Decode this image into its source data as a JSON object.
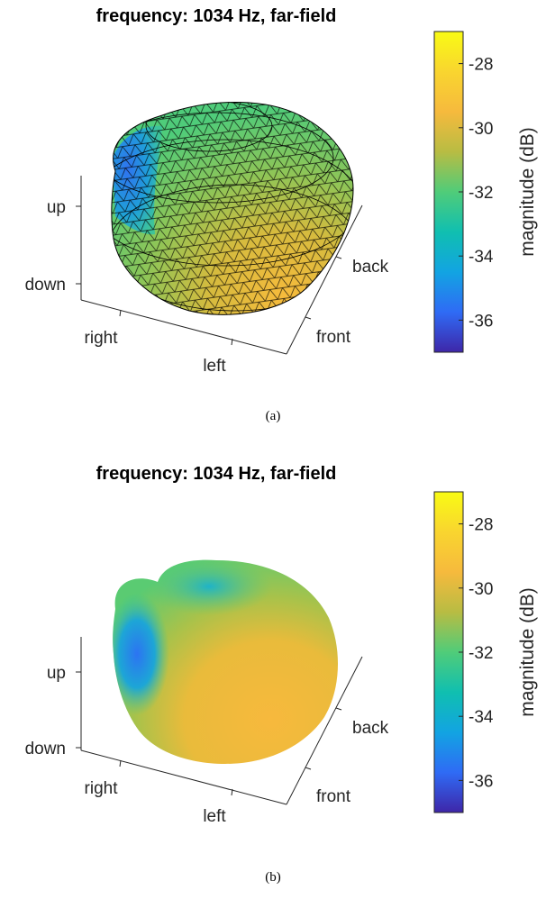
{
  "figure": {
    "caption_a": "(a)",
    "caption_b": "(b)"
  },
  "colors": {
    "colormap": [
      "#3e26a8",
      "#2f6bf5",
      "#12a4e2",
      "#10bfb0",
      "#50cc79",
      "#b8bc43",
      "#f6ba3d",
      "#f9d52f",
      "#f9fb14"
    ],
    "axis": "#262626",
    "mesh_edge": "#000000"
  },
  "chart_data": [
    {
      "type": "heatmap",
      "subtype": "3d directivity balloon (mesh surface)",
      "title": "frequency: 1034 Hz, far-field",
      "axes": {
        "z_ticks": [
          "up",
          "down"
        ],
        "x_ticks": [
          "right",
          "left"
        ],
        "y_ticks": [
          "front",
          "back"
        ]
      },
      "colorbar": {
        "label": "magnitude (dB)",
        "range": [
          -37,
          -27
        ],
        "ticks": [
          -28,
          -30,
          -32,
          -34,
          -36
        ]
      },
      "grid": false,
      "shading": "faceted mesh"
    },
    {
      "type": "heatmap",
      "subtype": "3d directivity balloon (smooth surface)",
      "title": "frequency: 1034 Hz, far-field",
      "axes": {
        "z_ticks": [
          "up",
          "down"
        ],
        "x_ticks": [
          "right",
          "left"
        ],
        "y_ticks": [
          "front",
          "back"
        ]
      },
      "colorbar": {
        "label": "magnitude (dB)",
        "range": [
          -37,
          -27
        ],
        "ticks": [
          -28,
          -30,
          -32,
          -34,
          -36
        ]
      },
      "grid": false,
      "shading": "interpolated"
    }
  ]
}
